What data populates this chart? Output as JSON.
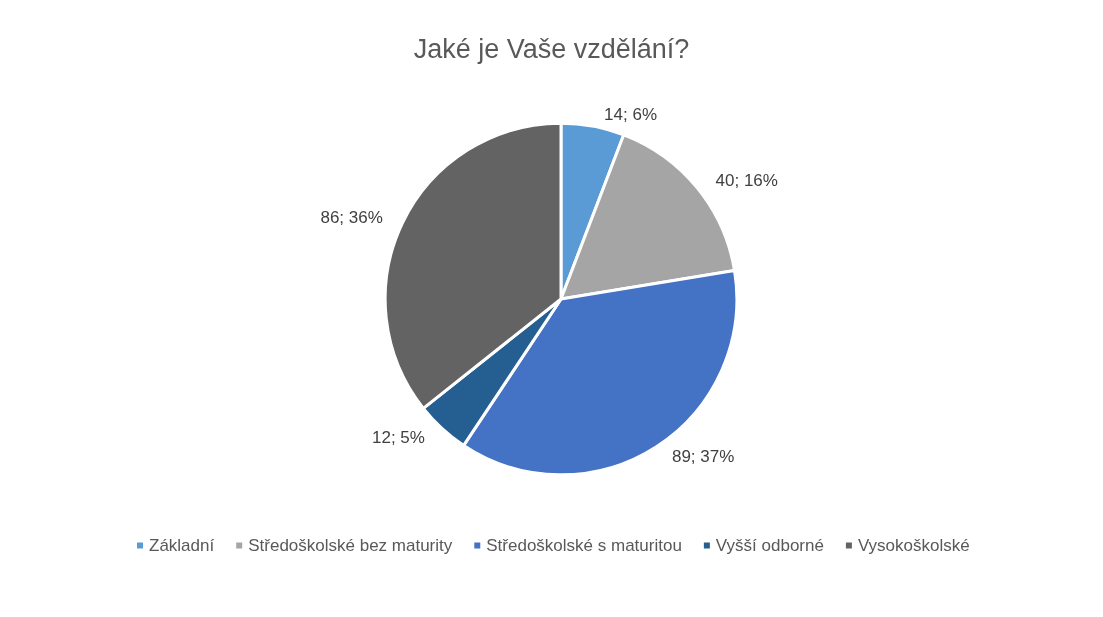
{
  "chart_data": {
    "type": "pie",
    "title": "Jaké je Vaše vzdělání?",
    "categories": [
      "Základní",
      "Středoškolské bez maturity",
      "Středoškolské s maturitou",
      "Vyšší odborné",
      "Vysokoškolské"
    ],
    "values": [
      14,
      40,
      89,
      12,
      86
    ],
    "value_labels": [
      "14; 6%",
      "40; 16%",
      "89; 37%",
      "12; 5%",
      "86; 36%"
    ],
    "colors": [
      "#5b9bd5",
      "#a5a5a5",
      "#4472c4",
      "#255e91",
      "#636363"
    ],
    "legend": "bottom"
  }
}
